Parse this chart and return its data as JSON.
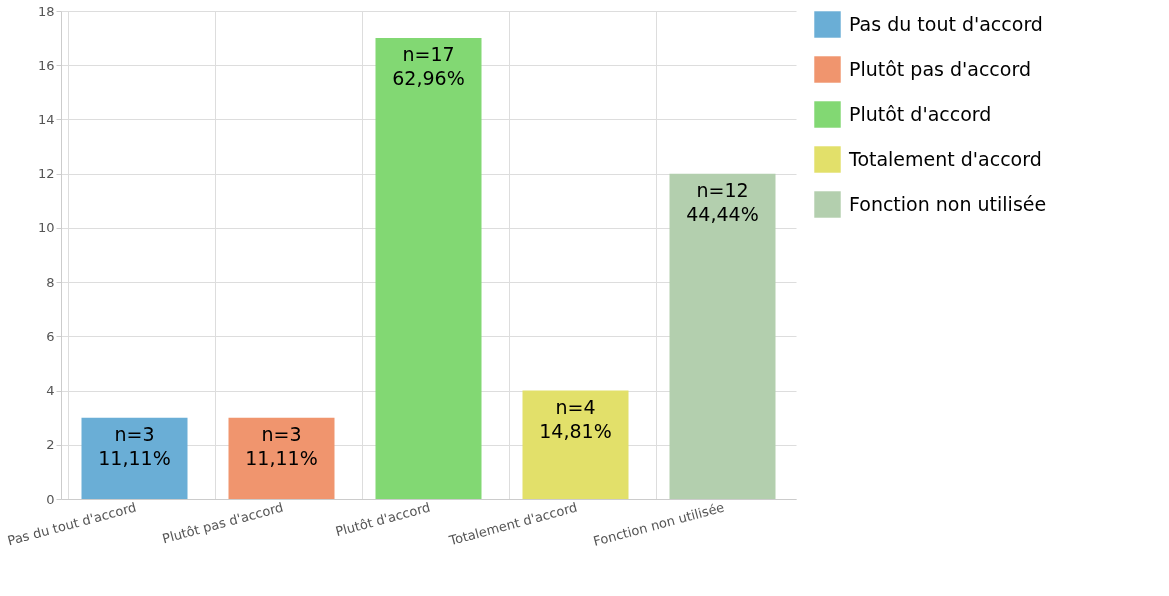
{
  "chart_data": {
    "type": "bar",
    "stacked": true,
    "categories": [
      "Pas du tout d'accord",
      "Plutôt pas d'accord",
      "Plutôt d'accord",
      "Totalement d'accord",
      "Fonction non utilisée"
    ],
    "series": [
      {
        "name": "Pas du tout d'accord",
        "color": "#6aaed6",
        "values": [
          3,
          null,
          null,
          null,
          null
        ],
        "value_labels": [
          "n=3\n11,11%",
          null,
          null,
          null,
          null
        ]
      },
      {
        "name": "Plutôt pas d'accord",
        "color": "#f0956e",
        "values": [
          null,
          3,
          null,
          null,
          null
        ],
        "value_labels": [
          null,
          "n=3\n11,11%",
          null,
          null,
          null
        ]
      },
      {
        "name": "Plutôt d'accord",
        "color": "#82d873",
        "values": [
          null,
          null,
          17,
          null,
          null
        ],
        "value_labels": [
          null,
          null,
          "n=17\n62,96%",
          null,
          null
        ]
      },
      {
        "name": "Totalement d'accord",
        "color": "#e2e06a",
        "values": [
          null,
          null,
          null,
          4,
          null
        ],
        "value_labels": [
          null,
          null,
          null,
          "n=4\n14,81%",
          null
        ]
      },
      {
        "name": "Fonction non utilisée",
        "color": "#b3cfae",
        "values": [
          null,
          null,
          null,
          null,
          12
        ],
        "value_labels": [
          null,
          null,
          null,
          null,
          "n=12\n44,44%"
        ]
      }
    ],
    "ylim": [
      0,
      18
    ],
    "yticks": [
      0,
      2,
      4,
      6,
      8,
      10,
      12,
      14,
      16,
      18
    ],
    "grid": true,
    "legend": "right"
  }
}
